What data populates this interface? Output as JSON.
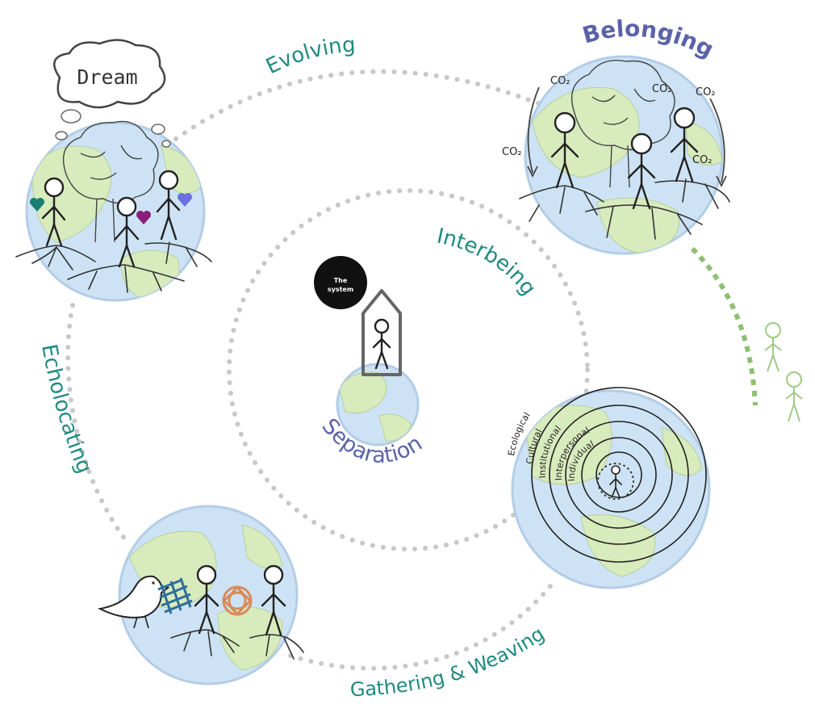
{
  "diagram": {
    "stages": {
      "evolving": "Evolving",
      "belonging": "Belonging",
      "interbeing": "Interbeing",
      "echolocating": "Echolocating",
      "separation": "Separation",
      "gathering_weaving": "Gathering & Weaving"
    },
    "dream_cloud": "Dream",
    "system_label_line1": "The",
    "system_label_line2": "system",
    "co2": [
      "CO₂",
      "CO₂",
      "CO₂",
      "CO₂",
      "CO₂"
    ],
    "levels": [
      "Ecological",
      "Cultural",
      "Institutional",
      "Interpersonal",
      "Individual"
    ],
    "colors": {
      "teal": "#1f8a80",
      "purple": "#5b63a8",
      "dots": "#c8c8c8",
      "green_dots": "#8fbf73",
      "heart_teal": "#1a7f73",
      "heart_purple": "#8a1d7a",
      "heart_blue": "#6c6fe0"
    }
  }
}
